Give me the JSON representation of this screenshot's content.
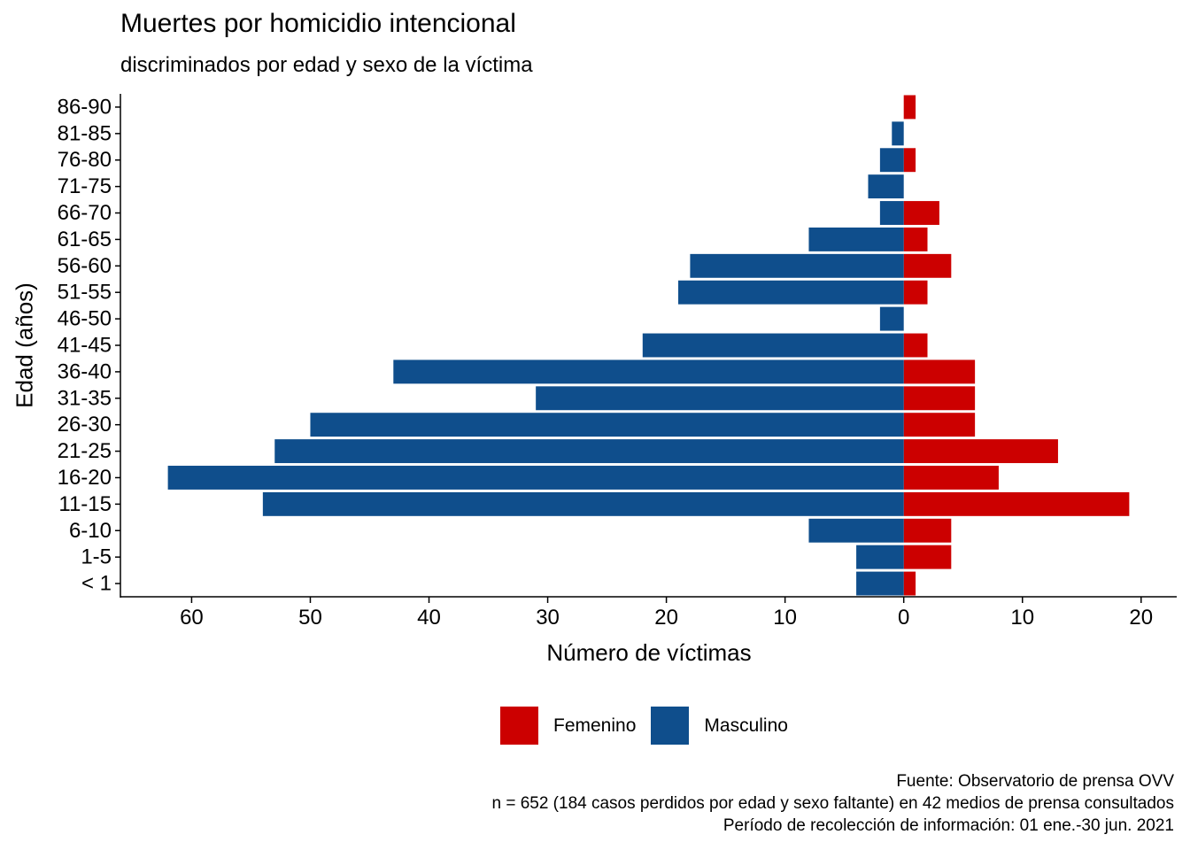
{
  "chart_data": {
    "type": "bar",
    "orientation": "horizontal-pyramid",
    "title": "Muertes por homicidio intencional",
    "subtitle": "discriminados por edad y sexo de la víctima",
    "xlabel": "Número de víctimas",
    "ylabel": "Edad (años)",
    "categories": [
      "< 1",
      "1-5",
      "6-10",
      "11-15",
      "16-20",
      "21-25",
      "26-30",
      "31-35",
      "36-40",
      "41-45",
      "46-50",
      "51-55",
      "56-60",
      "61-65",
      "66-70",
      "71-75",
      "76-80",
      "81-85",
      "86-90"
    ],
    "series": [
      {
        "name": "Femenino",
        "color": "#cc0000",
        "values": [
          1,
          4,
          4,
          19,
          8,
          13,
          6,
          6,
          6,
          2,
          0,
          2,
          4,
          2,
          3,
          0,
          1,
          0,
          1
        ]
      },
      {
        "name": "Masculino",
        "color": "#0f4e8c",
        "values": [
          -4,
          -4,
          -8,
          -54,
          -62,
          -53,
          -50,
          -31,
          -43,
          -22,
          -2,
          -19,
          -18,
          -8,
          -2,
          -3,
          -2,
          -1,
          0
        ]
      }
    ],
    "xlim": [
      -66,
      23
    ],
    "x_ticks": [
      -60,
      -50,
      -40,
      -30,
      -20,
      -10,
      0,
      10,
      20
    ],
    "x_tick_labels": [
      "60",
      "50",
      "40",
      "30",
      "20",
      "10",
      "0",
      "10",
      "20"
    ],
    "legend_position": "bottom",
    "grid": false
  },
  "caption": {
    "line1": "Fuente: Observatorio de prensa OVV",
    "line2": "n = 652 (184 casos perdidos por edad y sexo faltante) en 42 medios de prensa consultados",
    "line3": "Período de recolección de información: 01 ene.-30 jun. 2021"
  }
}
